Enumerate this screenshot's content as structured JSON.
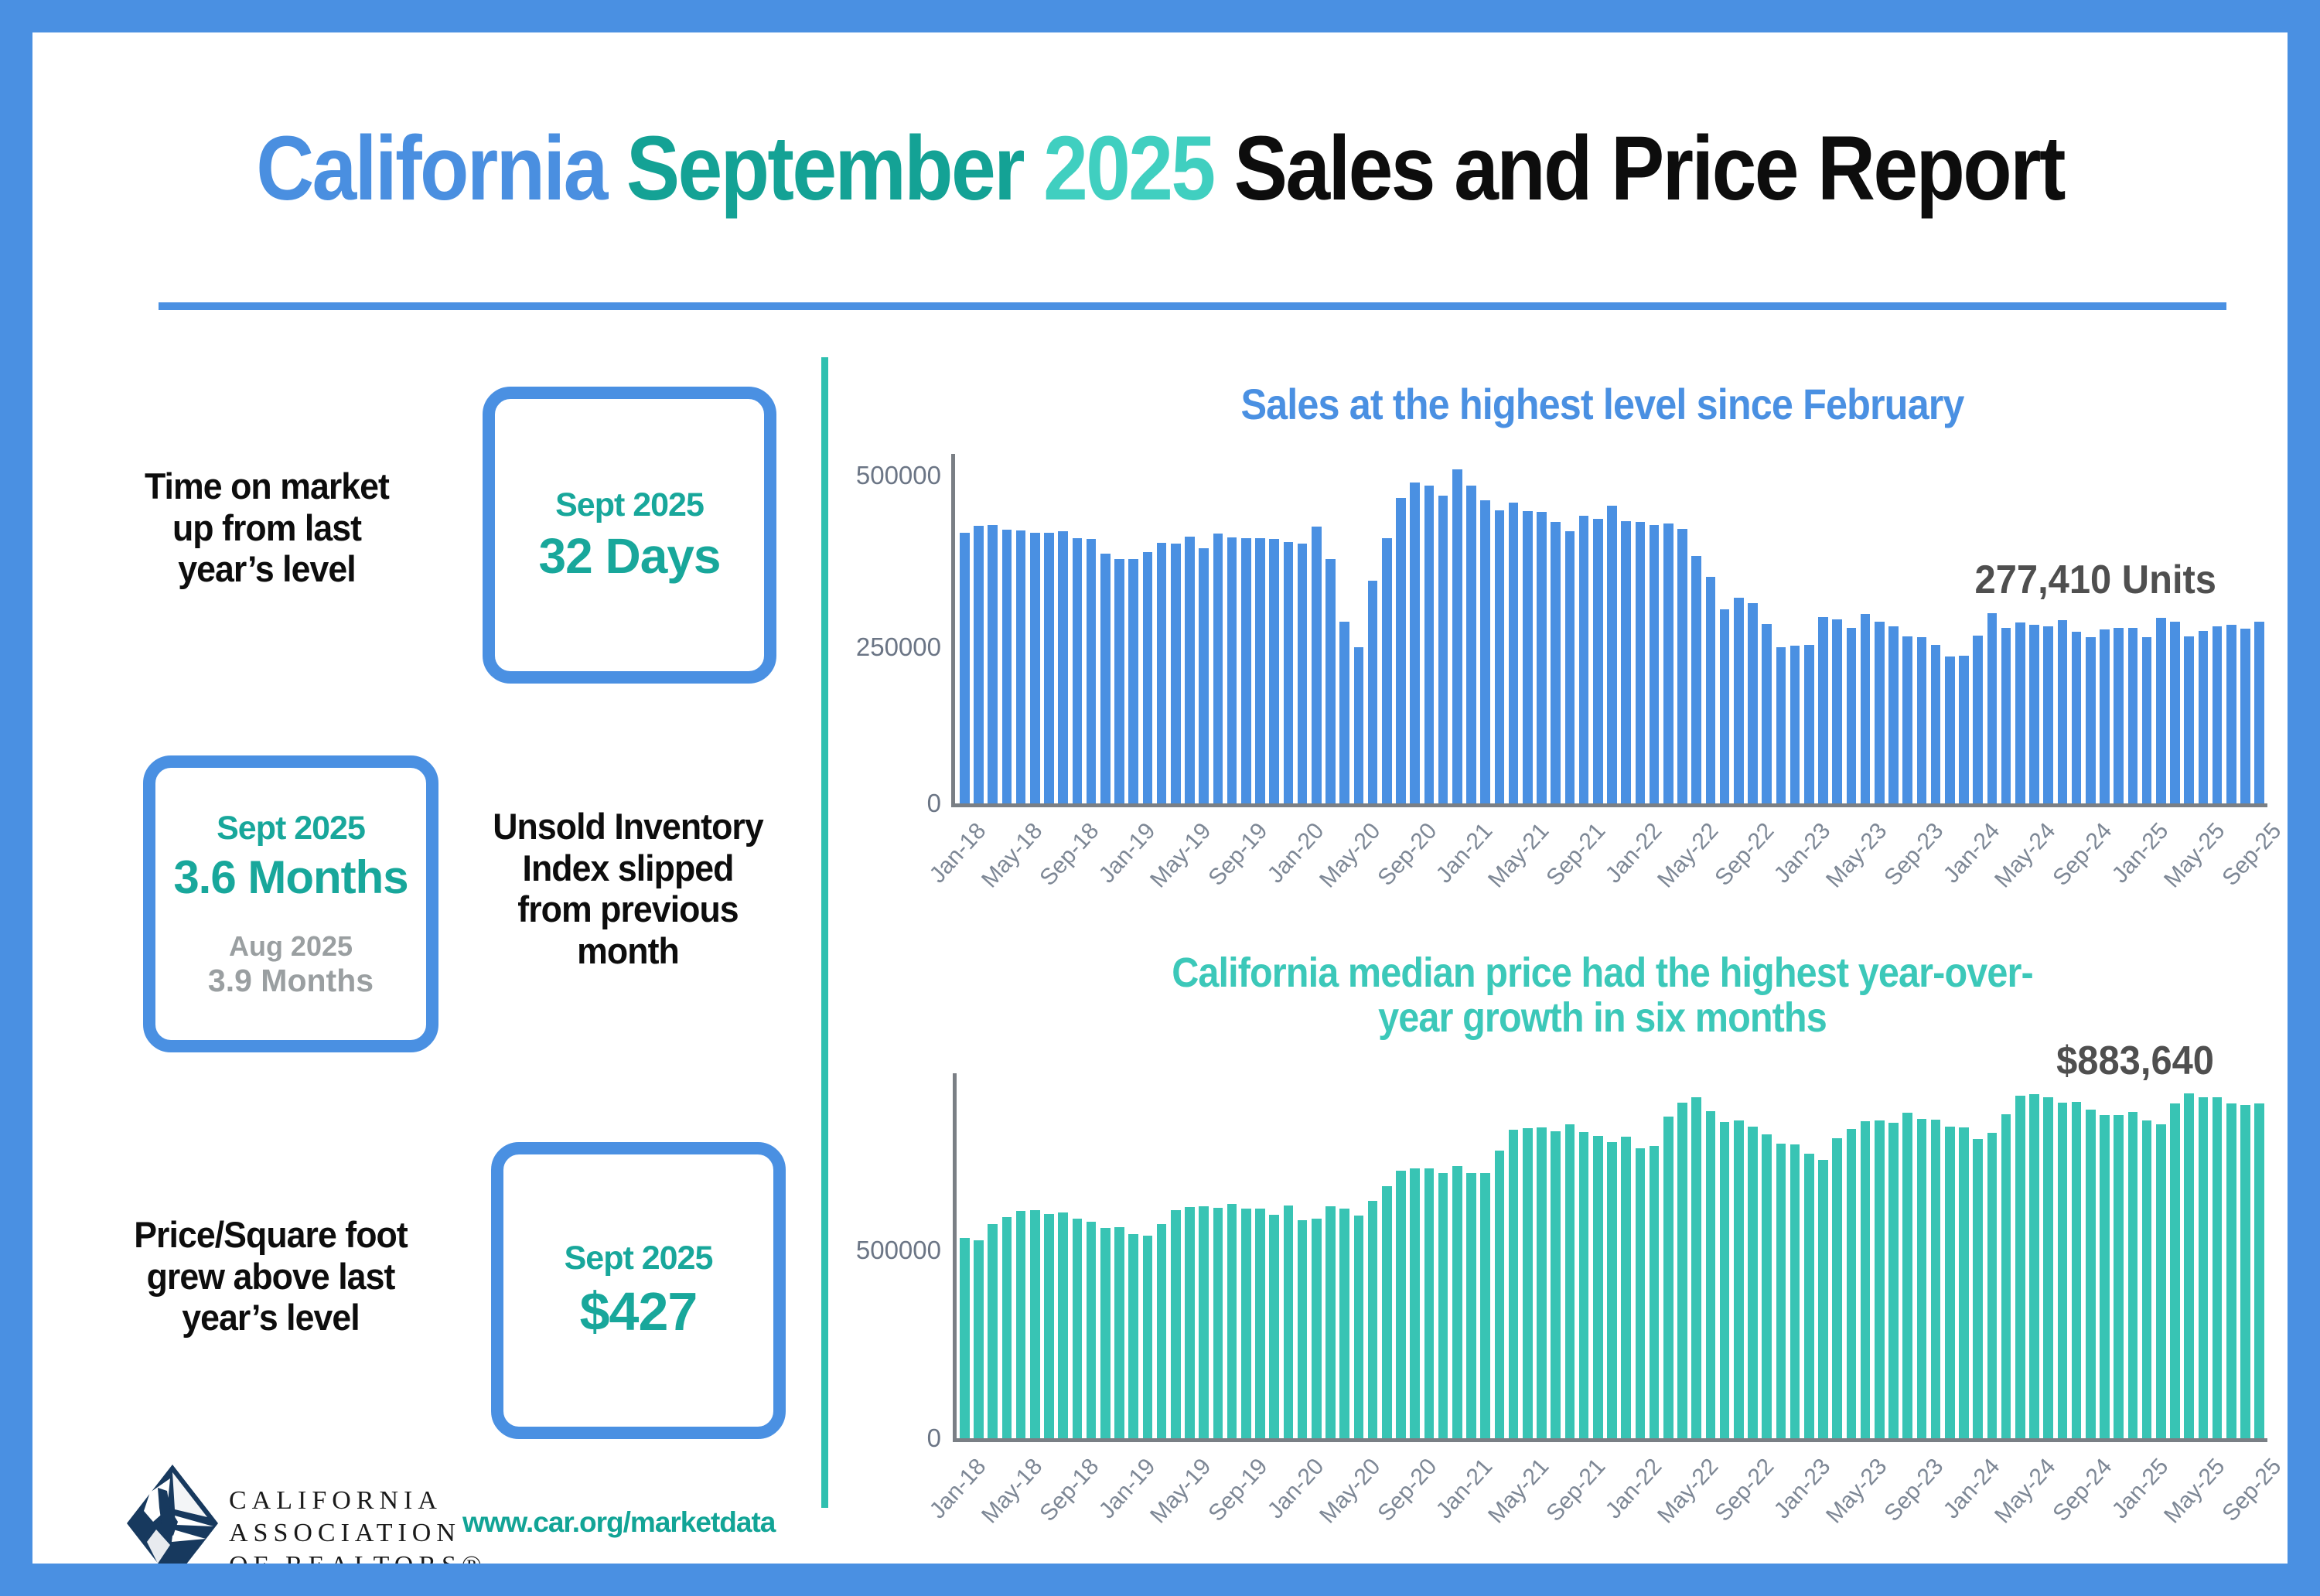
{
  "header": {
    "title_california": "California ",
    "title_month": "September ",
    "title_year": "2025 ",
    "title_rest": "Sales and Price Report"
  },
  "left_panel": {
    "row1": {
      "text": "Time on market up from last year’s level",
      "box_label": "Sept 2025",
      "box_value": "32 Days"
    },
    "row2": {
      "box_label": "Sept 2025",
      "box_value": "3.6 Months",
      "box_sublabel": "Aug 2025",
      "box_subvalue": "3.9 Months",
      "text": "Unsold Inventory Index slipped from previous month"
    },
    "row3": {
      "text": "Price/Square foot grew above last year’s level",
      "box_label": "Sept 2025",
      "box_value": "$427"
    },
    "logo": {
      "line1": "CALIFORNIA",
      "line2": "ASSOCIATION",
      "line3": "OF REALTORS®"
    },
    "website": "www.car.org/marketdata"
  },
  "colors": {
    "frame_blue": "#4a90e2",
    "title_blue": "#4a8fe0",
    "title_teal": "#14a295",
    "title_teal_light": "#40cfc0",
    "stat_teal": "#18a79b",
    "stat_gray": "#9a9fa1",
    "divider_teal": "#2fc0b0",
    "sales_bar_blue": "#4a90e2",
    "price_bar_teal": "#38c4b4",
    "annotation_gray": "#4f4f4f",
    "logo_navy": "#17395e"
  },
  "chart_data": [
    {
      "id": "sales",
      "type": "bar",
      "title": "Sales at the highest level since February",
      "annotation": "277,410 Units",
      "bar_color": "#4a90e2",
      "ylabel": "",
      "xlabel": "",
      "ylim": [
        0,
        530000
      ],
      "grid": false,
      "legend": "none",
      "y_ticks": [
        "500000",
        "250000",
        "0"
      ],
      "y_tick_values": [
        500000,
        250000,
        0
      ],
      "x_start": "Jan-2018",
      "x_end": "Sep-2025",
      "x_tick_step": 4,
      "x_tick_labels": [
        "Jan-18",
        "May-18",
        "Sep-18",
        "Jan-19",
        "May-19",
        "Sep-19",
        "Jan-20",
        "May-20",
        "Sep-20",
        "Jan-21",
        "May-21",
        "Sep-21",
        "Jan-22",
        "May-22",
        "Sep-22",
        "Jan-23",
        "May-23",
        "Sep-23",
        "Jan-24",
        "May-24",
        "Sep-24",
        "Jan-25",
        "May-25",
        "Sep-25"
      ],
      "values": [
        412160,
        422910,
        425070,
        418040,
        415790,
        412970,
        412490,
        415580,
        404210,
        402930,
        381400,
        372260,
        372730,
        383640,
        397210,
        396130,
        406960,
        389690,
        411630,
        406100,
        404030,
        404240,
        402880,
        398880,
        395760,
        421670,
        373070,
        277440,
        238740,
        339910,
        404420,
        465400,
        489590,
        484510,
        469200,
        509750,
        484730,
        462720,
        446410,
        458170,
        445850,
        444520,
        428980,
        414860,
        438190,
        434170,
        454450,
        429860,
        429540,
        424610,
        426970,
        419040,
        377010,
        344970,
        295460,
        313540,
        305680,
        274040,
        237740,
        240330,
        241520,
        284010,
        281050,
        267880,
        289460,
        277490,
        270200,
        254740,
        253940,
        241770,
        223940,
        225160,
        256160,
        290240,
        267470,
        275540,
        272410,
        270200,
        279810,
        262050,
        253010,
        264870,
        267800,
        268180,
        254110,
        283540,
        277030,
        254800,
        262500,
        270400,
        272130,
        266370,
        277410
      ]
    },
    {
      "id": "price",
      "type": "bar",
      "title_line1": "California median price had the highest year-over-",
      "title_line2": "year growth in six months",
      "annotation": "$883,640",
      "bar_color": "#38c4b4",
      "ylabel": "",
      "xlabel": "",
      "ylim": [
        0,
        970000
      ],
      "grid": false,
      "legend": "none",
      "y_ticks": [
        "500000",
        "0"
      ],
      "y_tick_values": [
        500000,
        0
      ],
      "x_start": "Jan-2018",
      "x_end": "Sep-2025",
      "x_tick_step": 4,
      "x_tick_labels": [
        "Jan-18",
        "May-18",
        "Sep-18",
        "Jan-19",
        "May-19",
        "Sep-19",
        "Jan-20",
        "May-20",
        "Sep-20",
        "Jan-21",
        "May-21",
        "Sep-21",
        "Jan-22",
        "May-22",
        "Sep-22",
        "Jan-23",
        "May-23",
        "Sep-23",
        "Jan-24",
        "May-24",
        "Sep-24",
        "Jan-25",
        "May-25",
        "Sep-25"
      ],
      "values": [
        527780,
        522440,
        564830,
        584460,
        600860,
        602760,
        591460,
        596410,
        578850,
        572000,
        554760,
        557600,
        538690,
        534140,
        565880,
        602920,
        611190,
        611420,
        607990,
        617410,
        605680,
        605280,
        589770,
        615090,
        575160,
        578690,
        612440,
        606410,
        588070,
        626170,
        666320,
        706900,
        712430,
        711300,
        698980,
        717930,
        699890,
        699000,
        758990,
        813980,
        818260,
        819630,
        811170,
        827940,
        808890,
        798440,
        782480,
        796570,
        765580,
        771270,
        849080,
        884890,
        898980,
        863790,
        833910,
        839460,
        821680,
        801190,
        777500,
        774580,
        751330,
        735480,
        791490,
        815340,
        836110,
        838260,
        832340,
        859450,
        843340,
        840360,
        822200,
        819740,
        788940,
        806490,
        854490,
        904210,
        908040,
        900720,
        886560,
        888740,
        868150,
        852880,
        852600,
        861020,
        838850,
        829060,
        884350,
        910160,
        900170,
        899560,
        884050,
        880250,
        883640
      ]
    }
  ]
}
